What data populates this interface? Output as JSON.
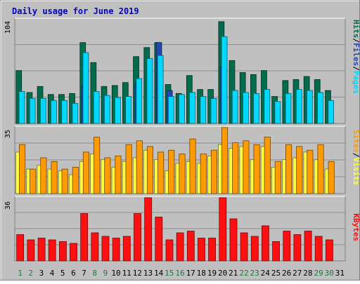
{
  "title": "Daily usage for June 2019",
  "colors": {
    "background": "#C0C0C0",
    "frame": "#DDDDDD",
    "title": "#0000CC",
    "hits": "#006C4C",
    "files": "#2048B0",
    "pages": "#00D8FF",
    "visits": "#FFFF40",
    "sites": "#FF9A00",
    "kbytes": "#FF1010",
    "weekend_day": "#1C7A40",
    "weekday": "#000000"
  },
  "chart_data": [
    {
      "type": "bar",
      "name": "hits-files-pages",
      "categories": [
        "1",
        "2",
        "3",
        "4",
        "5",
        "6",
        "7",
        "8",
        "9",
        "10",
        "11",
        "12",
        "13",
        "14",
        "15",
        "16",
        "17",
        "18",
        "19",
        "20",
        "21",
        "22",
        "23",
        "24",
        "25",
        "26",
        "27",
        "28",
        "29",
        "30",
        "31"
      ],
      "y_max_label": "104",
      "ylim": [
        0,
        104
      ],
      "series": [
        {
          "name": "Hits",
          "values": [
            53,
            31,
            37,
            29,
            29,
            30,
            81,
            61,
            37,
            38,
            41,
            67,
            76,
            81,
            39,
            30,
            48,
            34,
            34,
            102,
            63,
            51,
            49,
            53,
            27,
            43,
            44,
            47,
            44,
            33,
            0
          ]
        },
        {
          "name": "Files",
          "values": [
            0,
            0,
            0,
            0,
            0,
            0,
            38,
            0,
            0,
            0,
            0,
            40,
            0,
            81,
            33,
            0,
            0,
            0,
            0,
            57,
            0,
            0,
            0,
            0,
            0,
            0,
            0,
            0,
            0,
            0,
            0
          ]
        },
        {
          "name": "Pages",
          "values": [
            32,
            25,
            25,
            23,
            23,
            20,
            71,
            32,
            28,
            26,
            27,
            45,
            65,
            68,
            27,
            29,
            31,
            27,
            25,
            87,
            33,
            31,
            30,
            34,
            22,
            30,
            34,
            33,
            31,
            23,
            0
          ]
        }
      ],
      "right_labels": [
        {
          "text": "Hits",
          "series": "Hits"
        },
        {
          "text": "Files",
          "series": "Files"
        },
        {
          "text": "Pages",
          "series": "Pages"
        }
      ]
    },
    {
      "type": "bar",
      "name": "visits-sites",
      "y_max_label": "35",
      "ylim": [
        0,
        35
      ],
      "series": [
        {
          "name": "Visits",
          "values": [
            22,
            13,
            15,
            13,
            12,
            10,
            17,
            21,
            18,
            14,
            17,
            19,
            23,
            18,
            12,
            16,
            17,
            16,
            20,
            26,
            24,
            25,
            18,
            25,
            14,
            18,
            19,
            22,
            18,
            13,
            0
          ]
        },
        {
          "name": "Sites",
          "values": [
            26,
            13,
            19,
            17,
            13,
            14,
            22,
            30,
            19,
            20,
            26,
            28,
            25,
            22,
            23,
            21,
            29,
            21,
            23,
            35,
            27,
            28,
            26,
            30,
            17,
            26,
            25,
            23,
            26,
            17,
            0
          ]
        }
      ],
      "right_labels": [
        {
          "text": "Sites",
          "series": "Sites"
        },
        {
          "text": "Visits",
          "series": "Visits"
        }
      ]
    },
    {
      "type": "bar",
      "name": "kbytes",
      "y_max_label": "36",
      "ylim": [
        0,
        36
      ],
      "series": [
        {
          "name": "KBytes",
          "values": [
            15,
            12,
            13,
            12,
            11,
            10,
            27,
            16,
            14,
            13,
            14,
            27,
            36,
            25,
            12,
            16,
            17,
            13,
            13,
            36,
            24,
            16,
            14,
            20,
            11,
            17,
            15,
            17,
            14,
            12,
            0
          ]
        }
      ],
      "right_labels": [
        {
          "text": "KBytes",
          "series": "KBytes"
        }
      ]
    }
  ],
  "x_axis": {
    "labels": [
      "1",
      "2",
      "3",
      "4",
      "5",
      "6",
      "7",
      "8",
      "9",
      "10",
      "11",
      "12",
      "13",
      "14",
      "15",
      "16",
      "17",
      "18",
      "19",
      "20",
      "21",
      "22",
      "23",
      "24",
      "25",
      "26",
      "27",
      "28",
      "29",
      "30",
      "31"
    ],
    "weekend_days": [
      "1",
      "2",
      "8",
      "9",
      "15",
      "16",
      "22",
      "23",
      "29",
      "30"
    ]
  }
}
